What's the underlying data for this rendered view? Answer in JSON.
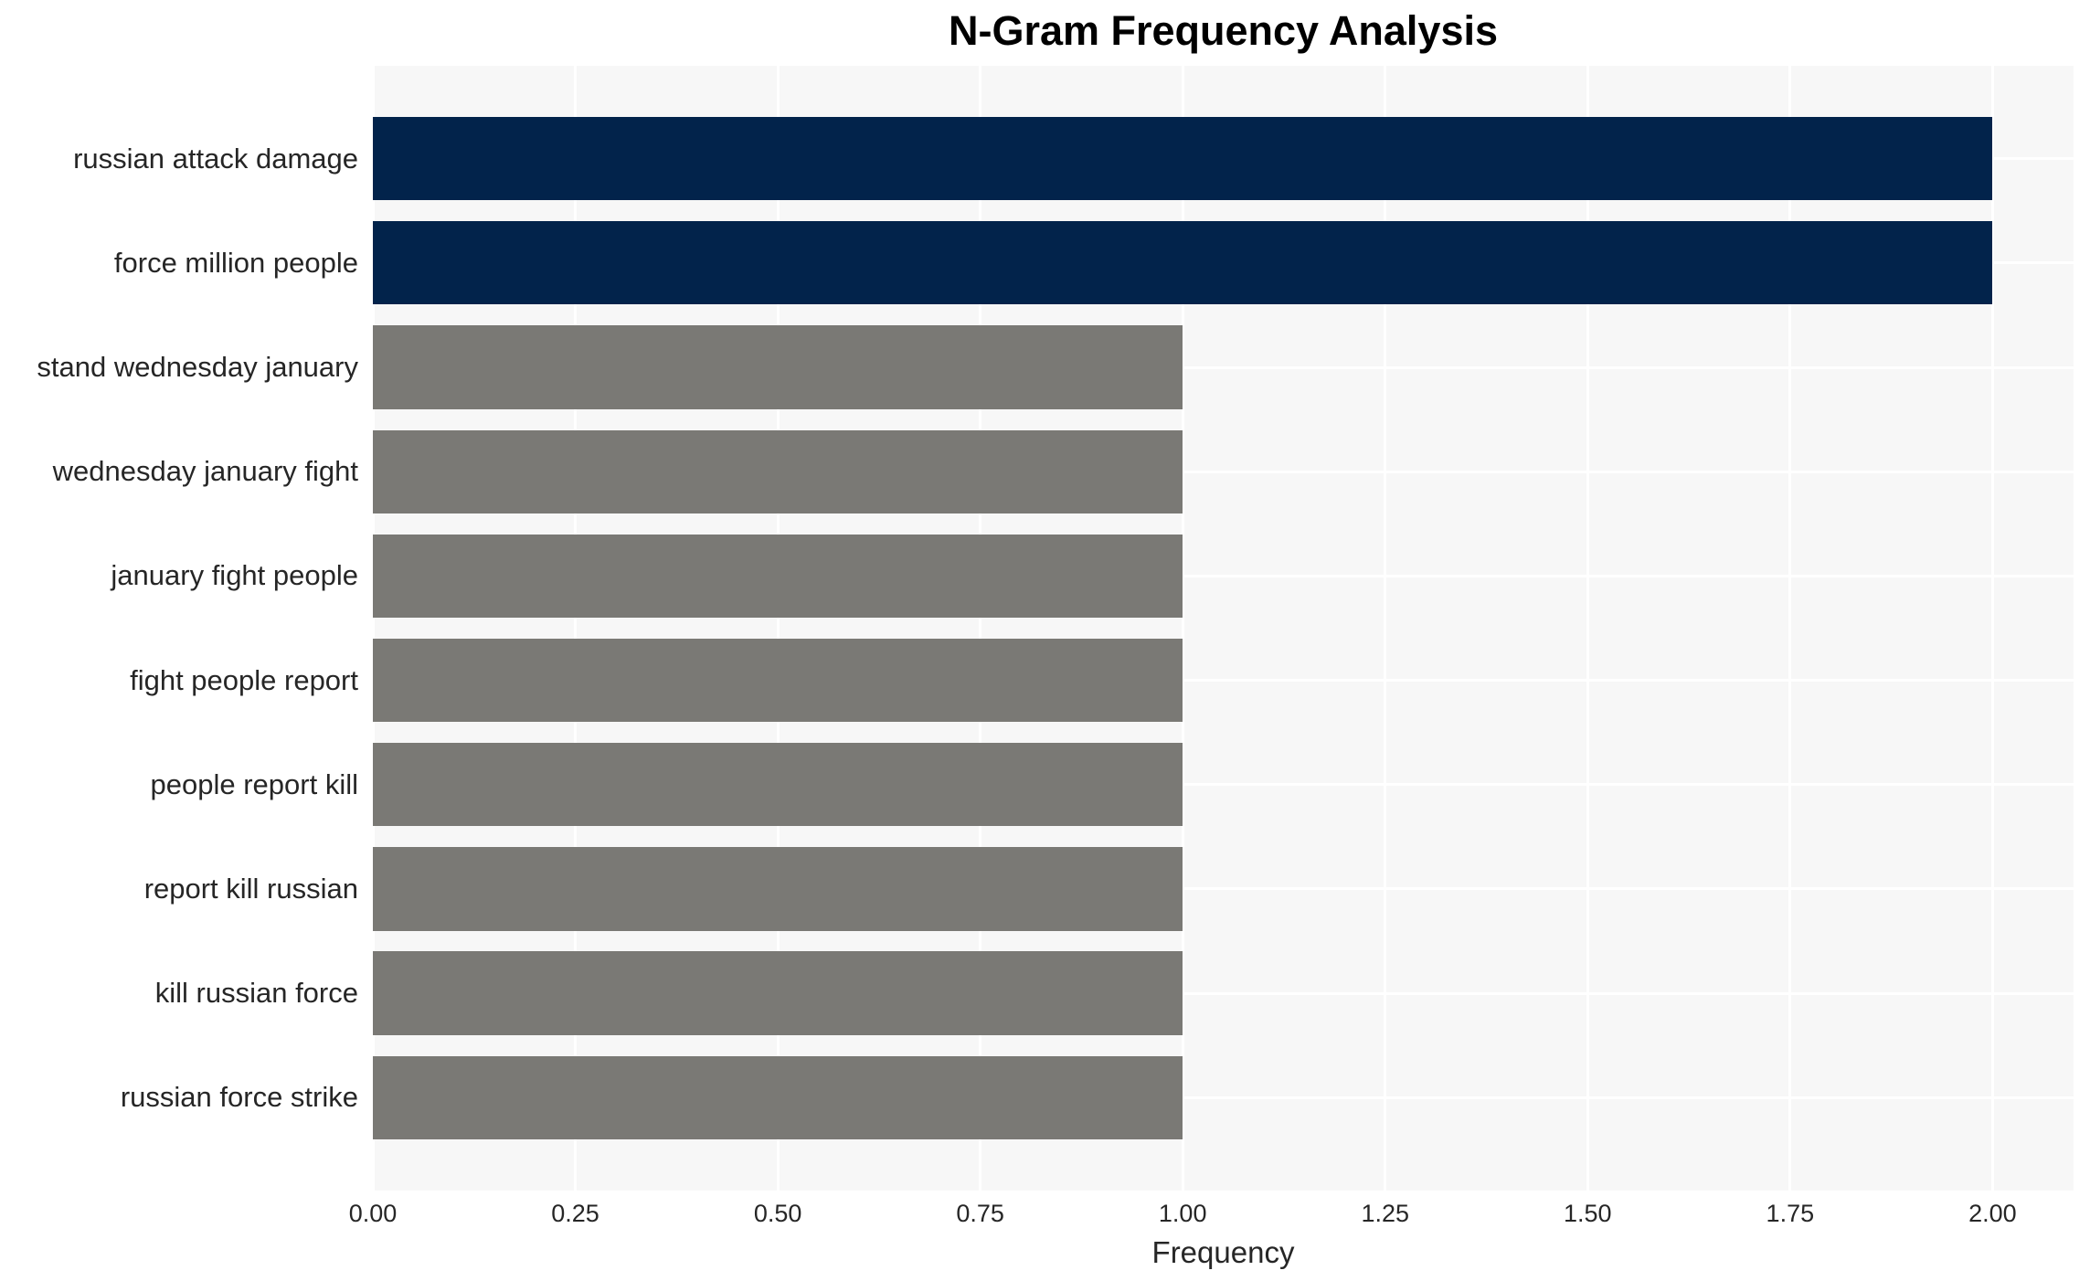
{
  "chart_data": {
    "type": "bar",
    "orientation": "horizontal",
    "title": "N-Gram Frequency Analysis",
    "xlabel": "Frequency",
    "ylabel": "",
    "categories": [
      "russian attack damage",
      "force million people",
      "stand wednesday january",
      "wednesday january fight",
      "january fight people",
      "fight people report",
      "people report kill",
      "report kill russian",
      "kill russian force",
      "russian force strike"
    ],
    "values": [
      2,
      2,
      1,
      1,
      1,
      1,
      1,
      1,
      1,
      1
    ],
    "bar_colors": [
      "#02234B",
      "#02234B",
      "#7A7975",
      "#7A7975",
      "#7A7975",
      "#7A7975",
      "#7A7975",
      "#7A7975",
      "#7A7975",
      "#7A7975"
    ],
    "xlim": [
      0,
      2.1
    ],
    "xtick_labels": [
      "0.00",
      "0.25",
      "0.50",
      "0.75",
      "1.00",
      "1.25",
      "1.50",
      "1.75",
      "2.00"
    ],
    "grid": "on",
    "legend_position": "none",
    "colors": {
      "highlight_bar": "#02234B",
      "default_bar": "#7A7975",
      "plot_background": "#F7F7F7",
      "gridline": "#FFFFFF",
      "page_background": "#FFFFFF",
      "text": "#262626",
      "title_text": "#000000"
    }
  }
}
